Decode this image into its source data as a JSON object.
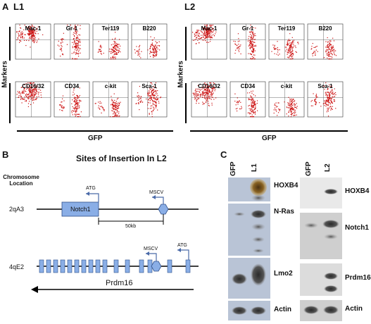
{
  "panelA": {
    "letter": "A",
    "groups": [
      {
        "id": "L1",
        "title": "L1",
        "ylabel": "Markers",
        "xlabel": "GFP",
        "row1": [
          "Mac-1",
          "Gr-1",
          "Ter119",
          "B220"
        ],
        "row2": [
          "CD16/32",
          "CD34",
          "c-kit",
          "Sca-1"
        ]
      },
      {
        "id": "L2",
        "title": "L2",
        "ylabel": "Markers",
        "xlabel": "GFP",
        "row1": [
          "Mac-1",
          "Gr-1",
          "Ter119",
          "B220"
        ],
        "row2": [
          "CD16/32",
          "CD34",
          "c-kit",
          "Sca-1"
        ]
      }
    ]
  },
  "panelB": {
    "letter": "B",
    "title": "Sites of Insertion In L2",
    "chromosome_header": "Chromosome\nLocation",
    "locus1": "2qA3",
    "locus2": "4qE2",
    "gene1": "Notch1",
    "gene2": "Prdm16",
    "atg": "ATG",
    "mscv": "MSCV",
    "scale": "50kb"
  },
  "panelC": {
    "letter": "C",
    "left": {
      "lanes": [
        "GFP",
        "L1"
      ],
      "bands": [
        "HOXB4",
        "N-Ras",
        "Lmo2",
        "Actin"
      ]
    },
    "right": {
      "lanes": [
        "GFP",
        "L2"
      ],
      "bands": [
        "HOXB4",
        "Notch1",
        "Prdm16",
        "Actin"
      ]
    }
  },
  "colors": {
    "dot": "#cc1111",
    "gene_box": "#8aaee6",
    "gene_box_border": "#2e4f8a",
    "blot_left_bg": "#b9c4d6",
    "blot_right_bg": "#d4d4d4"
  }
}
